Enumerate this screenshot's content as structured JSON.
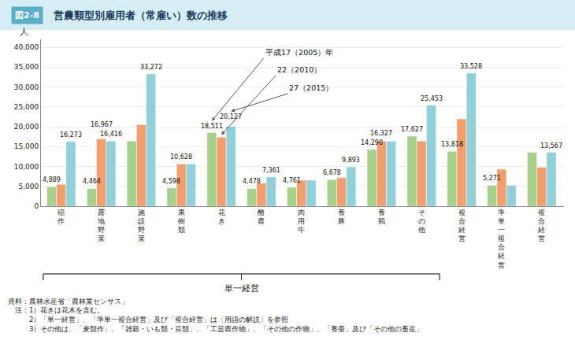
{
  "chart_data": {
    "type": "bar",
    "title": "営農類型別雇用者（常雇い）数の推移",
    "title_badge": "図2-8",
    "ylabel": "人",
    "categories": [
      "稲\n作",
      "露\n地\n野\n菜",
      "施\n設\n野\n菜",
      "果\n樹\n類",
      "花\nき",
      "酪\n農",
      "肉\n用\n牛",
      "養\n豚",
      "養\n鶏",
      "そ\nの\n他",
      "複\n合\n経\n営",
      "準\n単\n一\n複\n合\n経\n営",
      "複\n合\n経\n営"
    ],
    "series": [
      {
        "name": "平成17（2005）年",
        "color": "#a8d08d",
        "values": [
          4889,
          4464,
          16416,
          4598,
          18511,
          4478,
          4761,
          6678,
          14290,
          17627,
          13818,
          5271,
          13567
        ],
        "value_labels": [
          "4,889",
          "4,464",
          null,
          "4,598",
          "18,511",
          "4,478",
          "4,761",
          "6,678",
          "14,290",
          "17,627",
          "13,818",
          "5,271",
          null
        ]
      },
      {
        "name": "22（2010）",
        "color": "#f0a070",
        "values": [
          5500,
          16967,
          20500,
          10628,
          17400,
          5800,
          6533,
          7200,
          16327,
          16416,
          22000,
          9300,
          9800
        ],
        "value_labels": [
          null,
          "16,967",
          null,
          "10,628",
          null,
          null,
          null,
          null,
          "16,327",
          null,
          null,
          null,
          null
        ]
      },
      {
        "name": "27（2015）",
        "color": "#91d0d8",
        "values": [
          16273,
          16416,
          33272,
          10628,
          20127,
          7361,
          6533,
          9893,
          16327,
          25453,
          33528,
          5271,
          13567
        ],
        "value_labels": [
          "16,273",
          "16,416",
          "33,272",
          null,
          "20,127",
          "7,361",
          null,
          "9,893",
          null,
          "25,453",
          "33,528",
          null,
          "13,567"
        ]
      }
    ],
    "ylim": [
      0,
      42000
    ],
    "yticks": [
      0,
      {
        "value": 5000,
        "label": "5,000"
      },
      {
        "value": 10000,
        "label": "10,000"
      },
      {
        "value": 15000,
        "label": "15,000"
      },
      {
        "value": 20000,
        "label": "20,000"
      },
      {
        "value": 25000,
        "label": "25,000"
      },
      {
        "value": 30000,
        "label": "30,000"
      },
      {
        "value": 35000,
        "label": "35,000"
      },
      {
        "value": 40000,
        "label": "40,000"
      }
    ],
    "grid": true,
    "data_labels": true,
    "bracket": {
      "label": "単一経営",
      "from": 0,
      "to": 9
    },
    "notes": [
      "資料：農林水産省「農林業センサス」",
      "　注：1）花きは花木を含む。",
      "　　　2）「単一経営」、「準単一複合経営」及び「複合経営」は〔用語の解説〕を参照",
      "　　　3）その他は、「麦類作」、「雑穀・いも類・豆類」、「工芸農作物」、「その他の作物」、「養蚕」及び「その他の畜産」"
    ]
  }
}
